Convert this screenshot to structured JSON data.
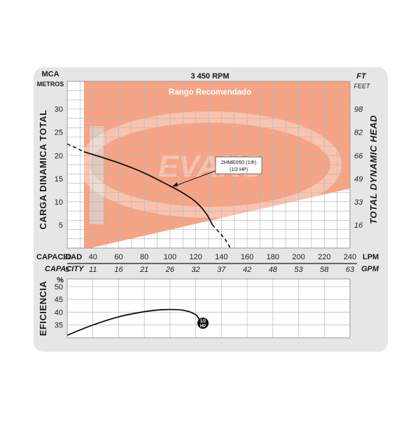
{
  "chart_data": [
    {
      "type": "line",
      "title": "3 450 RPM",
      "subtitle": "Rango Recomendado",
      "watermark": "EVANS",
      "y_left_unit_top": "MCA",
      "y_left_unit_bottom": "METROS",
      "y_right_unit_top": "FT",
      "y_right_unit_bottom": "FEET",
      "ylabel_left": "CARGA  DINAMICA  TOTAL",
      "ylabel_right": "TOTAL  DYNAMIC  HEAD",
      "xlabel_lpm": "CAPACIDAD",
      "xlabel_gpm": "CAPACITY",
      "x_unit_lpm": "LPM",
      "x_unit_gpm": "GPM",
      "x_ticks_lpm": [
        "20",
        "40",
        "60",
        "80",
        "100",
        "120",
        "140",
        "160",
        "180",
        "200",
        "220",
        "240"
      ],
      "x_ticks_gpm": [
        "5",
        "11",
        "16",
        "21",
        "26",
        "32",
        "37",
        "42",
        "48",
        "53",
        "58",
        "63"
      ],
      "y_ticks_left": [
        "5",
        "10",
        "15",
        "20",
        "25",
        "30"
      ],
      "y_ticks_right": [
        "16",
        "33",
        "49",
        "66",
        "82",
        "98"
      ],
      "xlim": [
        20,
        240
      ],
      "ylim": [
        0,
        36
      ],
      "grid": true,
      "recommended_range": {
        "label": "Rango Recomendado",
        "color": "#f7a384",
        "x_range": [
          33,
          240
        ],
        "lower_boundary": [
          [
            33,
            0
          ],
          [
            240,
            13
          ]
        ]
      },
      "series": [
        {
          "name": "2HME050 (1Φ)",
          "note": "(1/2 HP)",
          "color": "#111111",
          "solid": [
            [
              33,
              20.8
            ],
            [
              60,
              18.4
            ],
            [
              80,
              16.2
            ],
            [
              100,
              13.4
            ],
            [
              110,
              11.9
            ],
            [
              120,
              10.0
            ],
            [
              128,
              7.5
            ],
            [
              133,
              5.0
            ]
          ],
          "dashed_start": [
            [
              20,
              22.5
            ],
            [
              33,
              20.8
            ]
          ],
          "dashed_end": [
            [
              133,
              5.0
            ],
            [
              143,
              1.8
            ],
            [
              149,
              -1.2
            ]
          ]
        }
      ]
    },
    {
      "type": "line",
      "ylabel": "EFICIENCIA",
      "y_unit": "%",
      "y_ticks": [
        "35",
        "40",
        "45",
        "50"
      ],
      "ylim": [
        30,
        53
      ],
      "xlim": [
        20,
        240
      ],
      "grid": true,
      "series": [
        {
          "name": "1/2 HP",
          "color": "#111111",
          "points": [
            [
              20,
              31
            ],
            [
              40,
              35
            ],
            [
              60,
              38.2
            ],
            [
              80,
              40.2
            ],
            [
              95,
              41
            ],
            [
              110,
              40.8
            ],
            [
              120,
              39
            ],
            [
              124,
              36
            ]
          ]
        }
      ],
      "marker_label": [
        "1/2",
        "HP"
      ]
    }
  ]
}
